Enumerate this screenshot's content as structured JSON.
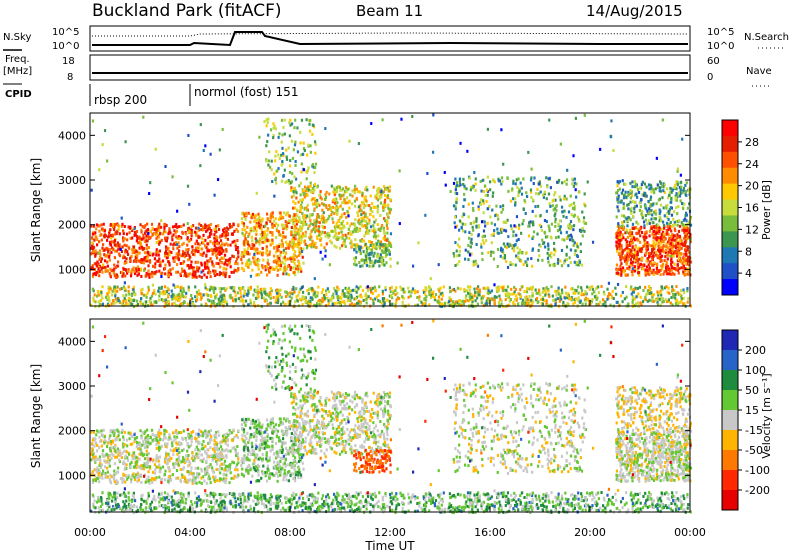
{
  "header": {
    "station": "Buckland Park (fitACF)",
    "beam": "Beam 11",
    "date": "14/Aug/2015"
  },
  "left_labels": {
    "nsky": "N.Sky",
    "freq_line1": "Freq.",
    "freq_line2": "[MHz]",
    "cpid": "CPID"
  },
  "right_labels": {
    "nsearch": "N.Search",
    "nave": "Nave"
  },
  "chart_data": [
    {
      "type": "line",
      "panel": "noise",
      "y_tick_labels_left": [
        "10^5",
        "10^0"
      ],
      "y_tick_labels_right": [
        "10^5",
        "10^0"
      ],
      "series": [
        {
          "name": "N.Sky"
        },
        {
          "name": "N.Search"
        }
      ]
    },
    {
      "type": "line",
      "panel": "frequency-nave",
      "y_tick_labels_left": [
        "18",
        "8"
      ],
      "y_tick_labels_right": [
        "60",
        "0"
      ],
      "series": [
        {
          "name": "Freq. [MHz]",
          "x": [
            0,
            4.0,
            4.05,
            24
          ],
          "y": [
            10,
            10,
            10,
            10
          ]
        },
        {
          "name": "Nave"
        }
      ]
    },
    {
      "type": "table",
      "panel": "cpid",
      "segments": [
        {
          "label": "rbsp 200",
          "start_hour": 0,
          "end_hour": 4.0
        },
        {
          "label": "normol (fost) 151",
          "start_hour": 4.0,
          "end_hour": 24
        }
      ]
    },
    {
      "type": "heatmap",
      "panel": "power",
      "ylabel": "Slant Range [km]",
      "ylim": [
        180,
        4500
      ],
      "y_ticks": [
        1000,
        2000,
        3000,
        4000
      ],
      "xlim": [
        0,
        24
      ],
      "colorbar": {
        "label": "Power [dB]",
        "ticks": [
          "4",
          "8",
          "12",
          "16",
          "20",
          "24",
          "28"
        ],
        "colors": [
          "#0000ff",
          "#2050c8",
          "#1e78b4",
          "#3c9650",
          "#78be3c",
          "#c8dc3c",
          "#ffc800",
          "#ff8c00",
          "#ff5000",
          "#e61e00",
          "#ff0000"
        ]
      }
    },
    {
      "type": "heatmap",
      "panel": "velocity",
      "ylabel": "Slant Range [km]",
      "xlabel": "Time UT",
      "ylim": [
        180,
        4500
      ],
      "y_ticks": [
        1000,
        2000,
        3000,
        4000
      ],
      "xlim": [
        0,
        24
      ],
      "x_tick_labels": [
        "00:00",
        "04:00",
        "08:00",
        "12:00",
        "16:00",
        "20:00",
        "00:00"
      ],
      "colorbar": {
        "label": "Velocity [m s⁻¹]",
        "ticks": [
          "200",
          "100",
          "50",
          "15",
          "-15",
          "-50",
          "-100",
          "-200"
        ],
        "colors": [
          "#1e28b4",
          "#2864c8",
          "#1e8c3c",
          "#64c832",
          "#c8c8c8",
          "#ffb400",
          "#ff7800",
          "#ff2800",
          "#e60000"
        ]
      }
    }
  ]
}
